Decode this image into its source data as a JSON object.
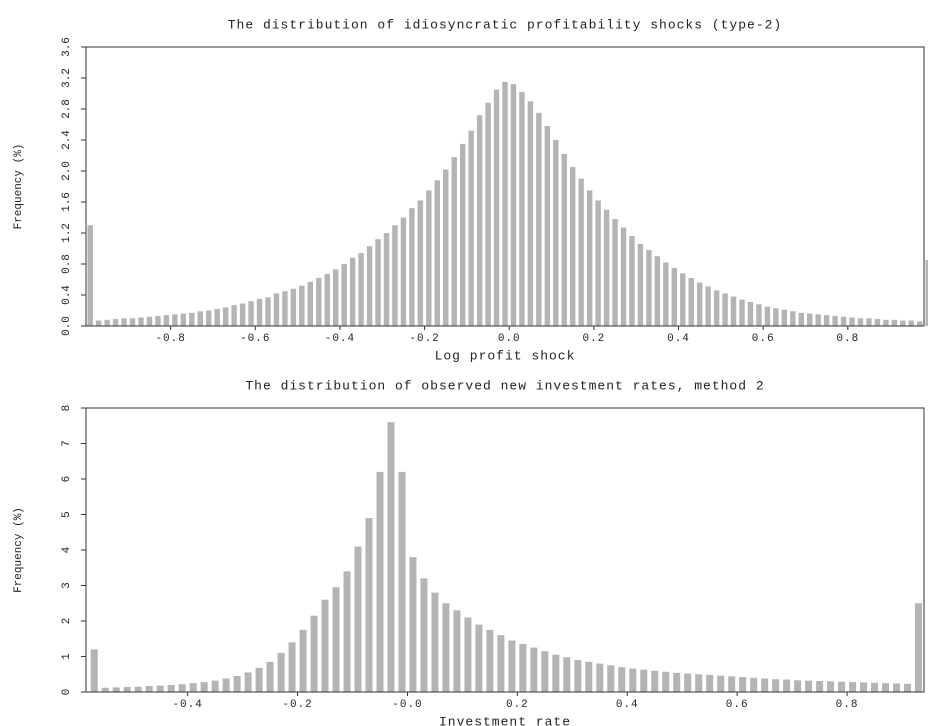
{
  "chart_data": [
    {
      "type": "bar",
      "title": "The distribution of idiosyncratic profitability shocks (type-2)",
      "xlabel": "Log profit shock",
      "ylabel": "Frequency (%)",
      "color": "#b4b4b4",
      "x": [
        -0.99,
        -0.97,
        -0.95,
        -0.93,
        -0.91,
        -0.89,
        -0.87,
        -0.85,
        -0.83,
        -0.81,
        -0.79,
        -0.77,
        -0.75,
        -0.73,
        -0.71,
        -0.69,
        -0.67,
        -0.65,
        -0.63,
        -0.61,
        -0.59,
        -0.57,
        -0.55,
        -0.53,
        -0.51,
        -0.49,
        -0.47,
        -0.45,
        -0.43,
        -0.41,
        -0.39,
        -0.37,
        -0.35,
        -0.33,
        -0.31,
        -0.29,
        -0.27,
        -0.25,
        -0.23,
        -0.21,
        -0.19,
        -0.17,
        -0.15,
        -0.13,
        -0.11,
        -0.09,
        -0.07,
        -0.05,
        -0.03,
        -0.01,
        0.01,
        0.03,
        0.05,
        0.07,
        0.09,
        0.11,
        0.13,
        0.15,
        0.17,
        0.19,
        0.21,
        0.23,
        0.25,
        0.27,
        0.29,
        0.31,
        0.33,
        0.35,
        0.37,
        0.39,
        0.41,
        0.43,
        0.45,
        0.47,
        0.49,
        0.51,
        0.53,
        0.55,
        0.57,
        0.59,
        0.61,
        0.63,
        0.65,
        0.67,
        0.69,
        0.71,
        0.73,
        0.75,
        0.77,
        0.79,
        0.81,
        0.83,
        0.85,
        0.87,
        0.89,
        0.91,
        0.93,
        0.95,
        0.97,
        0.99
      ],
      "values": [
        1.3,
        0.07,
        0.08,
        0.09,
        0.1,
        0.1,
        0.11,
        0.12,
        0.13,
        0.14,
        0.15,
        0.16,
        0.17,
        0.19,
        0.2,
        0.22,
        0.24,
        0.27,
        0.29,
        0.32,
        0.35,
        0.37,
        0.42,
        0.45,
        0.48,
        0.52,
        0.57,
        0.62,
        0.67,
        0.73,
        0.8,
        0.88,
        0.94,
        1.03,
        1.12,
        1.2,
        1.3,
        1.4,
        1.52,
        1.62,
        1.75,
        1.88,
        2.02,
        2.18,
        2.35,
        2.52,
        2.72,
        2.88,
        3.05,
        3.15,
        3.12,
        3.02,
        2.9,
        2.75,
        2.58,
        2.4,
        2.22,
        2.05,
        1.9,
        1.75,
        1.62,
        1.5,
        1.38,
        1.27,
        1.16,
        1.06,
        0.98,
        0.9,
        0.82,
        0.75,
        0.68,
        0.62,
        0.56,
        0.51,
        0.46,
        0.42,
        0.38,
        0.34,
        0.31,
        0.28,
        0.25,
        0.23,
        0.21,
        0.19,
        0.17,
        0.16,
        0.15,
        0.14,
        0.13,
        0.12,
        0.11,
        0.1,
        0.1,
        0.09,
        0.08,
        0.08,
        0.07,
        0.07,
        0.06,
        0.85
      ],
      "xlim": [
        -1.0,
        0.98
      ],
      "xticks": [
        -0.8,
        -0.6,
        -0.4,
        -0.2,
        {
          "value": 0,
          "label": "0.0"
        },
        0.2,
        0.4,
        0.6,
        0.8
      ],
      "ylim": [
        0,
        3.6
      ],
      "yticks": [
        {
          "value": 0,
          "label": "0.0"
        },
        0.4,
        0.8,
        1.2,
        1.6,
        {
          "value": 2,
          "label": "2.0"
        },
        2.4,
        2.8,
        3.2,
        3.6
      ]
    },
    {
      "type": "bar",
      "title": "The distribution of observed new investment rates, method 2",
      "xlabel": "Investment rate",
      "ylabel": "Frequency (%)",
      "color": "#b4b4b4",
      "x": [
        -0.57,
        -0.55,
        -0.53,
        -0.51,
        -0.49,
        -0.47,
        -0.45,
        -0.43,
        -0.41,
        -0.39,
        -0.37,
        -0.35,
        -0.33,
        -0.31,
        -0.29,
        -0.27,
        -0.25,
        -0.23,
        -0.21,
        -0.19,
        -0.17,
        -0.15,
        -0.13,
        -0.11,
        -0.09,
        -0.07,
        -0.05,
        -0.03,
        -0.01,
        0.01,
        0.03,
        0.05,
        0.07,
        0.09,
        0.11,
        0.13,
        0.15,
        0.17,
        0.19,
        0.21,
        0.23,
        0.25,
        0.27,
        0.29,
        0.31,
        0.33,
        0.35,
        0.37,
        0.39,
        0.41,
        0.43,
        0.45,
        0.47,
        0.49,
        0.51,
        0.53,
        0.55,
        0.57,
        0.59,
        0.61,
        0.63,
        0.65,
        0.67,
        0.69,
        0.71,
        0.73,
        0.75,
        0.77,
        0.79,
        0.81,
        0.83,
        0.85,
        0.87,
        0.89,
        0.91,
        0.93
      ],
      "values": [
        1.2,
        0.12,
        0.13,
        0.14,
        0.15,
        0.17,
        0.18,
        0.2,
        0.22,
        0.25,
        0.28,
        0.32,
        0.38,
        0.45,
        0.55,
        0.68,
        0.85,
        1.1,
        1.4,
        1.75,
        2.15,
        2.6,
        2.95,
        3.4,
        4.1,
        4.9,
        6.2,
        7.6,
        6.2,
        3.8,
        3.2,
        2.8,
        2.5,
        2.3,
        2.1,
        1.9,
        1.75,
        1.6,
        1.45,
        1.35,
        1.25,
        1.15,
        1.05,
        0.98,
        0.9,
        0.85,
        0.8,
        0.75,
        0.7,
        0.66,
        0.63,
        0.6,
        0.57,
        0.54,
        0.52,
        0.5,
        0.48,
        0.46,
        0.44,
        0.42,
        0.4,
        0.38,
        0.36,
        0.35,
        0.33,
        0.32,
        0.31,
        0.3,
        0.29,
        0.28,
        0.27,
        0.26,
        0.25,
        0.24,
        0.23,
        2.5
      ],
      "xlim": [
        -0.585,
        0.94
      ],
      "xticks": [
        -0.4,
        -0.2,
        {
          "value": 0,
          "label": "-0.0"
        },
        0.2,
        0.4,
        0.6,
        0.8
      ],
      "ylim": [
        0,
        8
      ],
      "yticks": [
        0,
        1,
        2,
        3,
        4,
        5,
        6,
        7,
        8
      ]
    }
  ]
}
